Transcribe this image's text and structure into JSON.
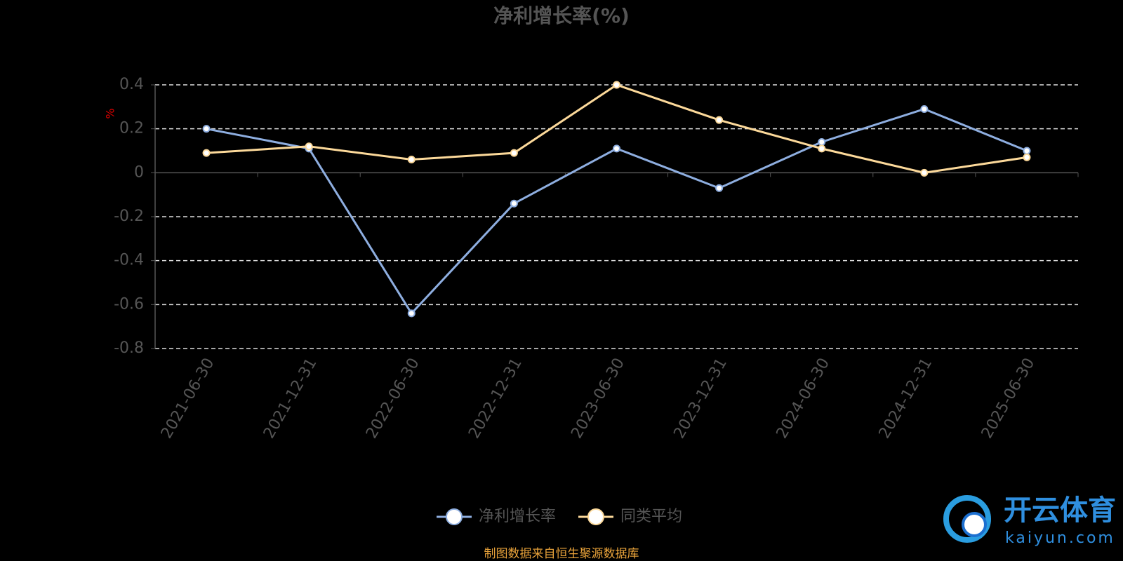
{
  "chart_data": {
    "type": "line",
    "title": "净利增长率(%)",
    "y_label": "%",
    "categories": [
      "2021-06-30",
      "2021-12-31",
      "2022-06-30",
      "2022-12-31",
      "2023-06-30",
      "2023-12-31",
      "2024-06-30",
      "2024-12-31",
      "2025-06-30"
    ],
    "series": [
      {
        "name": "净利增长率",
        "color": "#8eaee0",
        "values": [
          0.2,
          0.11,
          -0.64,
          -0.14,
          0.11,
          -0.07,
          0.14,
          0.29,
          0.1
        ]
      },
      {
        "name": "同类平均",
        "color": "#fcd99a",
        "values": [
          0.09,
          0.12,
          0.06,
          0.09,
          0.4,
          0.24,
          0.11,
          0.0,
          0.07
        ]
      }
    ],
    "ylim": [
      -0.8,
      0.4
    ],
    "yticks": [
      -0.8,
      -0.6,
      -0.4,
      -0.2,
      0,
      0.2,
      0.4
    ],
    "grid": true,
    "legend": "bottom",
    "source": "制图数据来自恒生聚源数据库"
  },
  "watermark": {
    "brand": "开云体育",
    "site": "kaiyun.com"
  }
}
